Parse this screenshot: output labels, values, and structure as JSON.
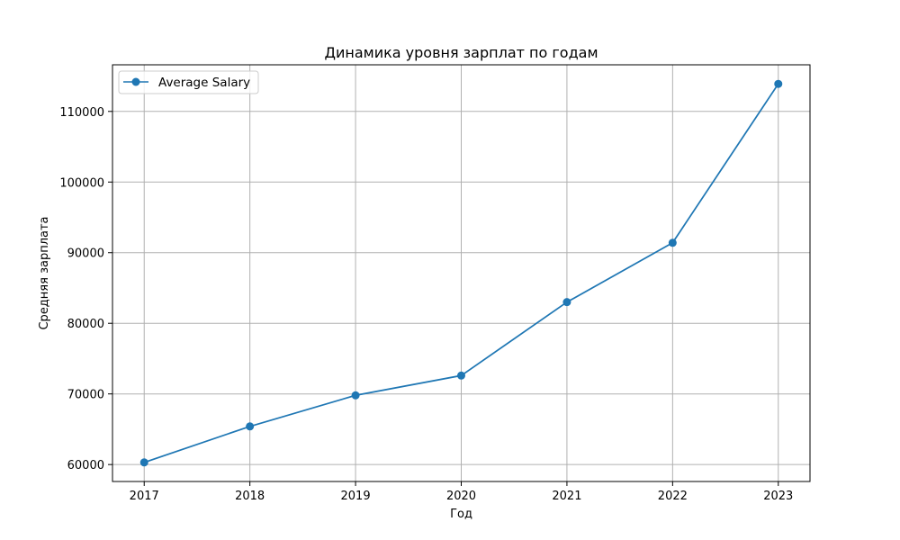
{
  "chart_data": {
    "type": "line",
    "title": "Динамика уровня зарплат по годам",
    "xlabel": "Год",
    "ylabel": "Средняя зарплата",
    "x": [
      2017,
      2018,
      2019,
      2020,
      2021,
      2022,
      2023
    ],
    "series": [
      {
        "name": "Average Salary",
        "values": [
          60300,
          65400,
          69800,
          72600,
          83000,
          91400,
          113900
        ],
        "color": "#1f77b4",
        "marker": "circle"
      }
    ],
    "xlim": [
      2016.7,
      2023.3
    ],
    "ylim": [
      57600,
      116600
    ],
    "xticks": [
      "2017",
      "2018",
      "2019",
      "2020",
      "2021",
      "2022",
      "2023"
    ],
    "yticks": [
      "60000",
      "70000",
      "80000",
      "90000",
      "100000",
      "110000"
    ],
    "grid": true,
    "legend_position": "upper left"
  }
}
